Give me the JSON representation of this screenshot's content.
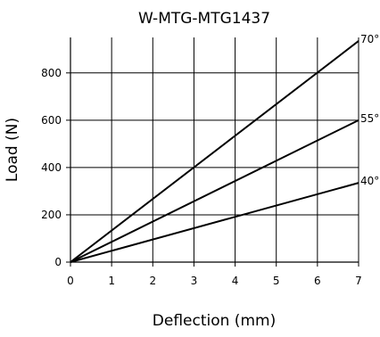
{
  "chart_data": {
    "type": "line",
    "title": "W-MTG-MTG1437",
    "xlabel": "Deflection (mm)",
    "ylabel": "Load (N)",
    "xlim": [
      0,
      7
    ],
    "ylim": [
      0,
      950
    ],
    "x_ticks": [
      0,
      1,
      2,
      3,
      4,
      5,
      6,
      7
    ],
    "y_ticks": [
      0,
      200,
      400,
      600,
      800
    ],
    "grid": true,
    "legend": "none",
    "series": [
      {
        "name": "70°",
        "x": [
          0,
          7
        ],
        "y": [
          0,
          935
        ]
      },
      {
        "name": "55°",
        "x": [
          0,
          7
        ],
        "y": [
          0,
          600
        ]
      },
      {
        "name": "40°",
        "x": [
          0,
          7
        ],
        "y": [
          0,
          335
        ]
      }
    ]
  }
}
